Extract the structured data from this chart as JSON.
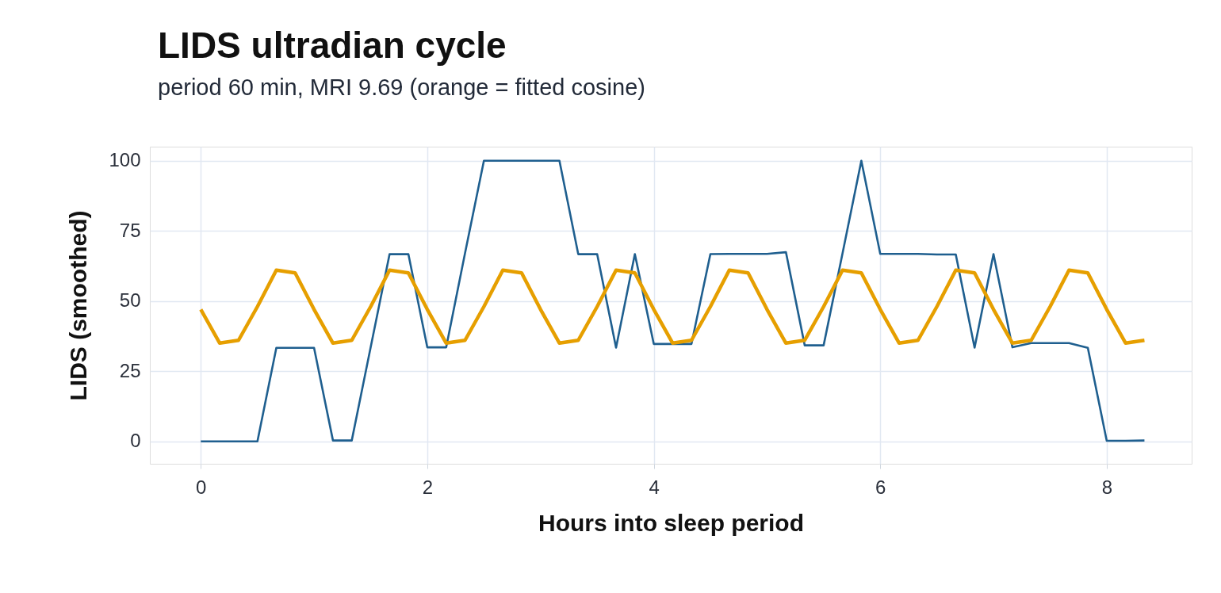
{
  "chart_data": {
    "type": "line",
    "title": "LIDS ultradian cycle",
    "subtitle": "period 60 min, MRI 9.69 (orange = fitted cosine)",
    "xlabel": "Hours into sleep period",
    "ylabel": "LIDS (smoothed)",
    "x": [
      0,
      0.167,
      0.333,
      0.5,
      0.667,
      0.833,
      1.0,
      1.167,
      1.333,
      1.5,
      1.667,
      1.833,
      2.0,
      2.167,
      2.333,
      2.5,
      2.667,
      2.833,
      3.0,
      3.167,
      3.333,
      3.5,
      3.667,
      3.833,
      4.0,
      4.167,
      4.333,
      4.5,
      4.667,
      4.833,
      5.0,
      5.167,
      5.333,
      5.5,
      5.667,
      5.833,
      6.0,
      6.167,
      6.333,
      6.5,
      6.667,
      6.833,
      7.0,
      7.167,
      7.333,
      7.5,
      7.667,
      7.833,
      8.0,
      8.167,
      8.333
    ],
    "series": [
      {
        "color": "#1f5f8f",
        "values": [
          0,
          0,
          0,
          0,
          33.3,
          33.3,
          33.3,
          0.3,
          0.3,
          33.5,
          66.7,
          66.7,
          33.5,
          33.5,
          67,
          100,
          100,
          100,
          100,
          100,
          66.7,
          66.7,
          33.4,
          66.7,
          34.7,
          34.7,
          34.7,
          66.7,
          66.8,
          66.8,
          66.8,
          67.4,
          34.2,
          34.2,
          67,
          100,
          66.8,
          66.8,
          66.8,
          66.6,
          66.6,
          33.4,
          66.7,
          33.5,
          35,
          35,
          35,
          33.3,
          0.2,
          0.2,
          0.3
        ]
      },
      {
        "color": "#e69f00",
        "values": [
          47,
          35,
          36,
          48,
          61,
          60,
          47,
          35,
          36,
          48,
          61,
          60,
          47,
          35,
          36,
          48,
          61,
          60,
          47,
          35,
          36,
          48,
          61,
          60,
          47,
          35,
          36,
          48,
          61,
          60,
          47,
          35,
          36,
          48,
          61,
          60,
          47,
          35,
          36,
          48,
          61,
          60,
          47,
          35,
          36,
          48,
          61,
          60,
          47,
          35,
          36
        ]
      }
    ],
    "xlim": [
      -0.45,
      8.75
    ],
    "ylim": [
      -8,
      105
    ],
    "xticks": [
      0,
      2,
      4,
      6,
      8
    ],
    "yticks": [
      0,
      25,
      50,
      75,
      100
    ],
    "grid": true
  }
}
